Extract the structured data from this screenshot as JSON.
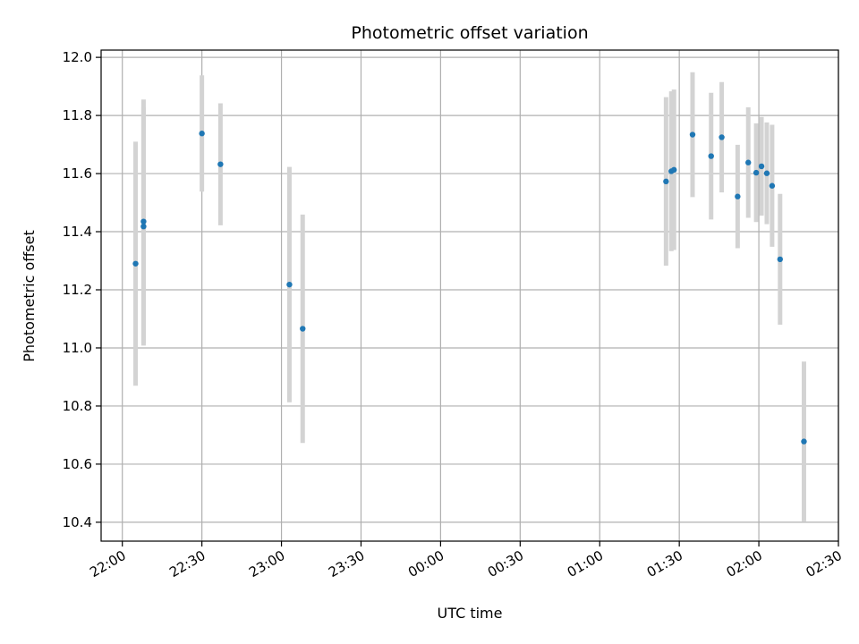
{
  "chart_data": {
    "type": "scatter",
    "title": "Photometric offset variation",
    "xlabel": "UTC time",
    "ylabel": "Photometric offset",
    "x_ticks": [
      "22:00",
      "22:30",
      "23:00",
      "23:30",
      "00:00",
      "00:30",
      "01:00",
      "01:30",
      "02:00",
      "02:30"
    ],
    "x_range": [
      "21:52",
      "02:30"
    ],
    "y_ticks": [
      "10.4",
      "10.6",
      "10.8",
      "11.0",
      "11.2",
      "11.4",
      "11.6",
      "11.8",
      "12.0"
    ],
    "ylim": [
      10.335,
      12.025
    ],
    "grid": true,
    "colors": {
      "marker": "#1f77b4",
      "errorbar": "#d3d3d3",
      "grid": "#b0b0b0"
    },
    "points": [
      {
        "t": "22:05",
        "y": 11.29,
        "err": 0.42
      },
      {
        "t": "22:08",
        "y": 11.435,
        "err": 0.42
      },
      {
        "t": "22:08",
        "y": 11.418,
        "err": 0.41
      },
      {
        "t": "22:30",
        "y": 11.738,
        "err": 0.2
      },
      {
        "t": "22:37",
        "y": 11.632,
        "err": 0.21
      },
      {
        "t": "23:03",
        "y": 11.218,
        "err": 0.405
      },
      {
        "t": "23:08",
        "y": 11.066,
        "err": 0.393
      },
      {
        "t": "01:25",
        "y": 11.573,
        "err": 0.29
      },
      {
        "t": "01:27",
        "y": 11.608,
        "err": 0.275
      },
      {
        "t": "01:28",
        "y": 11.613,
        "err": 0.276
      },
      {
        "t": "01:35",
        "y": 11.734,
        "err": 0.215
      },
      {
        "t": "01:42",
        "y": 11.66,
        "err": 0.218
      },
      {
        "t": "01:46",
        "y": 11.725,
        "err": 0.19
      },
      {
        "t": "01:52",
        "y": 11.521,
        "err": 0.178
      },
      {
        "t": "01:56",
        "y": 11.638,
        "err": 0.19
      },
      {
        "t": "01:59",
        "y": 11.603,
        "err": 0.17
      },
      {
        "t": "02:01",
        "y": 11.625,
        "err": 0.17
      },
      {
        "t": "02:03",
        "y": 11.601,
        "err": 0.175
      },
      {
        "t": "02:05",
        "y": 11.558,
        "err": 0.21
      },
      {
        "t": "02:08",
        "y": 11.305,
        "err": 0.225
      },
      {
        "t": "02:17",
        "y": 10.678,
        "err": 0.275
      }
    ]
  }
}
